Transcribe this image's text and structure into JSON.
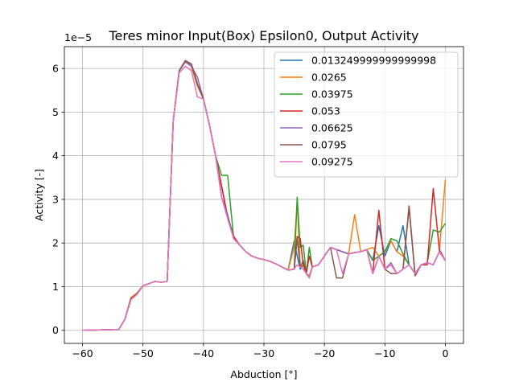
{
  "chart_data": {
    "type": "line",
    "title": "Teres minor Input(Box) Epsilon0, Output Activity",
    "xlabel": "Abduction [°]",
    "ylabel": "Activity [-]",
    "y_offset_label": "1e−5",
    "xlim": [
      -63,
      3
    ],
    "ylim": [
      -0.3,
      6.5
    ],
    "y_scale": 1e-05,
    "grid": true,
    "legend_position": "top-right",
    "x_ticks": [
      -60,
      -50,
      -40,
      -30,
      -20,
      -10,
      0
    ],
    "x_tick_labels": [
      "−60",
      "−50",
      "−40",
      "−30",
      "−20",
      "−10",
      "0"
    ],
    "y_ticks": [
      0,
      1,
      2,
      3,
      4,
      5,
      6
    ],
    "y_tick_labels": [
      "0",
      "1",
      "2",
      "3",
      "4",
      "5",
      "6"
    ],
    "series": [
      {
        "name": "0.013249999999999998",
        "color": "#1f77b4",
        "lw": 1.5,
        "x": [
          -60,
          -54,
          -53,
          -52,
          -51,
          -50,
          -49,
          -48,
          -47,
          -46,
          -45,
          -44,
          -43,
          -42,
          -41,
          -40,
          -39,
          -38,
          -37,
          -36,
          -35,
          -34,
          -33,
          -32,
          -31,
          -30,
          -29,
          -28,
          -27,
          -26,
          -25,
          -24.5,
          -24,
          -23.5,
          -23,
          -22.5,
          -22,
          -21,
          -20,
          -19,
          -18,
          -17,
          -16,
          -15,
          -14,
          -13,
          -12,
          -11,
          -10,
          -9,
          -8,
          -7,
          -6,
          -5,
          -4,
          -3,
          -2,
          -1,
          0
        ],
        "y": [
          0,
          0.02,
          0.25,
          0.75,
          0.85,
          1.02,
          1.07,
          1.12,
          1.1,
          1.12,
          4.8,
          5.95,
          6.15,
          6.05,
          5.6,
          5.3,
          4.7,
          4.0,
          3.3,
          2.6,
          2.15,
          1.95,
          1.8,
          1.7,
          1.65,
          1.62,
          1.58,
          1.52,
          1.45,
          1.38,
          2.05,
          1.7,
          1.4,
          1.5,
          1.3,
          1.25,
          1.45,
          1.5,
          1.7,
          1.9,
          1.85,
          1.8,
          1.75,
          1.78,
          1.8,
          1.85,
          1.6,
          2.4,
          1.7,
          2.05,
          1.8,
          2.4,
          1.5,
          1.3,
          1.5,
          1.55,
          1.5,
          1.8,
          1.6
        ]
      },
      {
        "name": "0.0265",
        "color": "#ff7f0e",
        "lw": 1.5,
        "x": [
          -60,
          -54,
          -53,
          -52,
          -51,
          -50,
          -49,
          -48,
          -47,
          -46,
          -45,
          -44,
          -43,
          -42,
          -41,
          -40,
          -39,
          -38,
          -37,
          -36,
          -35,
          -34,
          -33,
          -32,
          -31,
          -30,
          -29,
          -28,
          -27,
          -26,
          -25,
          -24.5,
          -24,
          -23.5,
          -23,
          -22.5,
          -22,
          -21,
          -20,
          -19,
          -18,
          -17,
          -16,
          -15,
          -14,
          -13,
          -12,
          -11,
          -10,
          -9,
          -8,
          -7,
          -6,
          -5,
          -4,
          -3,
          -2,
          -1,
          0
        ],
        "y": [
          0,
          0.02,
          0.25,
          0.75,
          0.85,
          1.02,
          1.07,
          1.12,
          1.1,
          1.12,
          4.8,
          5.95,
          6.15,
          6.05,
          5.6,
          5.3,
          4.7,
          4.0,
          3.3,
          2.6,
          2.15,
          1.95,
          1.8,
          1.7,
          1.65,
          1.62,
          1.58,
          1.52,
          1.45,
          1.38,
          1.9,
          2.95,
          1.45,
          1.5,
          1.3,
          1.25,
          1.45,
          1.5,
          1.7,
          1.9,
          1.85,
          1.8,
          1.75,
          2.65,
          1.8,
          1.85,
          1.9,
          1.7,
          1.8,
          2.05,
          1.8,
          1.7,
          1.5,
          1.3,
          1.5,
          1.55,
          1.5,
          1.8,
          3.45
        ]
      },
      {
        "name": "0.03975",
        "color": "#2ca02c",
        "lw": 1.5,
        "x": [
          -60,
          -54,
          -53,
          -52,
          -51,
          -50,
          -49,
          -48,
          -47,
          -46,
          -45,
          -44,
          -43,
          -42,
          -41,
          -40,
          -39,
          -38,
          -37,
          -36,
          -35,
          -34,
          -33,
          -32,
          -31,
          -30,
          -29,
          -28,
          -27,
          -26,
          -25,
          -24.5,
          -24,
          -23.5,
          -23,
          -22.5,
          -22,
          -21,
          -20,
          -19,
          -18,
          -17,
          -16,
          -15,
          -14,
          -13,
          -12,
          -11,
          -10,
          -9,
          -8,
          -7,
          -6,
          -5,
          -4,
          -3,
          -2,
          -1,
          0
        ],
        "y": [
          0,
          0.02,
          0.25,
          0.7,
          0.82,
          1.02,
          1.07,
          1.12,
          1.1,
          1.12,
          4.8,
          5.95,
          6.15,
          6.1,
          5.65,
          5.3,
          4.7,
          4.0,
          3.55,
          3.55,
          2.1,
          1.95,
          1.8,
          1.7,
          1.65,
          1.62,
          1.58,
          1.52,
          1.45,
          1.38,
          1.4,
          3.05,
          1.9,
          1.95,
          1.3,
          1.9,
          1.45,
          1.5,
          1.7,
          1.9,
          1.85,
          1.8,
          1.75,
          1.78,
          1.8,
          1.85,
          1.6,
          1.7,
          1.8,
          2.1,
          2.05,
          1.75,
          1.5,
          1.3,
          1.5,
          1.55,
          2.3,
          2.25,
          2.45
        ]
      },
      {
        "name": "0.053",
        "color": "#d62728",
        "lw": 1.5,
        "x": [
          -60,
          -54,
          -53,
          -52,
          -51,
          -50,
          -49,
          -48,
          -47,
          -46,
          -45,
          -44,
          -43,
          -42,
          -41,
          -40,
          -39,
          -38,
          -37,
          -36,
          -35,
          -34,
          -33,
          -32,
          -31,
          -30,
          -29,
          -28,
          -27,
          -26,
          -25,
          -24.5,
          -24,
          -23.5,
          -23,
          -22.5,
          -22,
          -21,
          -20,
          -19,
          -18,
          -17,
          -16,
          -15,
          -14,
          -13,
          -12,
          -11,
          -10,
          -9,
          -8,
          -7,
          -6,
          -5,
          -4,
          -3,
          -2,
          -1,
          0
        ],
        "y": [
          0,
          0.02,
          0.25,
          0.72,
          0.84,
          1.02,
          1.07,
          1.12,
          1.1,
          1.12,
          4.8,
          5.95,
          6.18,
          6.1,
          5.65,
          5.3,
          4.7,
          4.0,
          3.3,
          2.6,
          2.15,
          1.95,
          1.8,
          1.7,
          1.65,
          1.62,
          1.58,
          1.52,
          1.45,
          1.38,
          1.4,
          2.15,
          2.1,
          1.5,
          1.3,
          1.7,
          1.45,
          1.5,
          1.7,
          1.9,
          1.85,
          1.8,
          1.75,
          1.78,
          1.8,
          1.85,
          1.3,
          2.75,
          1.4,
          1.5,
          1.3,
          1.4,
          2.85,
          1.25,
          1.5,
          1.5,
          3.25,
          1.85,
          1.6
        ]
      },
      {
        "name": "0.06625",
        "color": "#9467bd",
        "lw": 1.5,
        "x": [
          -60,
          -54,
          -53,
          -52,
          -51,
          -50,
          -49,
          -48,
          -47,
          -46,
          -45,
          -44,
          -43,
          -42,
          -41,
          -40,
          -39,
          -38,
          -37,
          -36,
          -35,
          -34,
          -33,
          -32,
          -31,
          -30,
          -29,
          -28,
          -27,
          -26,
          -25,
          -24.5,
          -24,
          -23.5,
          -23,
          -22.5,
          -22,
          -21,
          -20,
          -19,
          -18,
          -17,
          -16,
          -15,
          -14,
          -13,
          -12,
          -11,
          -10,
          -9,
          -8,
          -7,
          -6,
          -5,
          -4,
          -3,
          -2,
          -1,
          0
        ],
        "y": [
          0,
          0.02,
          0.25,
          0.7,
          0.82,
          1.02,
          1.07,
          1.12,
          1.1,
          1.12,
          4.8,
          5.95,
          6.15,
          6.05,
          5.8,
          5.3,
          4.7,
          4.0,
          3.05,
          2.65,
          2.1,
          1.95,
          1.8,
          1.7,
          1.65,
          1.62,
          1.58,
          1.52,
          1.45,
          1.38,
          1.4,
          2.1,
          1.45,
          1.4,
          1.3,
          1.2,
          1.45,
          1.5,
          1.7,
          1.9,
          1.85,
          1.8,
          1.75,
          1.78,
          1.8,
          1.85,
          1.3,
          1.7,
          1.4,
          1.55,
          1.3,
          1.4,
          1.5,
          1.3,
          1.5,
          1.55,
          1.5,
          1.8,
          1.6
        ]
      },
      {
        "name": "0.0795",
        "color": "#8c564b",
        "lw": 1.5,
        "x": [
          -60,
          -54,
          -53,
          -52,
          -51,
          -50,
          -49,
          -48,
          -47,
          -46,
          -45,
          -44,
          -43,
          -42,
          -41,
          -40,
          -39,
          -38,
          -37,
          -36,
          -35,
          -34,
          -33,
          -32,
          -31,
          -30,
          -29,
          -28,
          -27,
          -26,
          -25,
          -24.5,
          -24,
          -23.5,
          -23,
          -22.5,
          -22,
          -21,
          -20,
          -19,
          -18,
          -17,
          -16,
          -15,
          -14,
          -13,
          -12,
          -11,
          -10,
          -9,
          -8,
          -7,
          -6,
          -5,
          -4,
          -3,
          -2,
          -1,
          0
        ],
        "y": [
          0,
          0.02,
          0.25,
          0.72,
          0.84,
          1.02,
          1.07,
          1.12,
          1.1,
          1.12,
          4.8,
          5.95,
          6.18,
          6.1,
          5.65,
          5.3,
          4.7,
          4.0,
          3.05,
          2.6,
          2.1,
          1.95,
          1.8,
          1.7,
          1.65,
          1.62,
          1.58,
          1.52,
          1.45,
          1.38,
          1.4,
          2.15,
          1.45,
          1.6,
          1.3,
          1.2,
          1.45,
          1.5,
          1.7,
          1.9,
          1.2,
          1.2,
          1.75,
          1.78,
          1.8,
          1.85,
          1.3,
          1.7,
          1.4,
          1.3,
          1.3,
          1.4,
          2.8,
          1.25,
          1.5,
          1.55,
          1.5,
          1.8,
          1.6
        ]
      },
      {
        "name": "0.09275",
        "color": "#e377c2",
        "lw": 1.5,
        "x": [
          -60,
          -54,
          -53,
          -52,
          -51,
          -50,
          -49,
          -48,
          -47,
          -46,
          -45,
          -44,
          -43,
          -42,
          -41,
          -40,
          -39,
          -38,
          -37,
          -36,
          -35,
          -34,
          -33,
          -32,
          -31,
          -30,
          -29,
          -28,
          -27,
          -26,
          -25,
          -24.5,
          -24,
          -23.5,
          -23,
          -22.5,
          -22,
          -21,
          -20,
          -19,
          -18,
          -17,
          -16,
          -15,
          -14,
          -13,
          -12,
          -11,
          -10,
          -9,
          -8,
          -7,
          -6,
          -5,
          -4,
          -3,
          -2,
          -1,
          0
        ],
        "y": [
          0,
          0.02,
          0.25,
          0.7,
          0.82,
          1.02,
          1.07,
          1.12,
          1.1,
          1.12,
          4.8,
          5.9,
          6.05,
          5.95,
          5.35,
          5.3,
          4.7,
          4.0,
          3.05,
          2.55,
          2.1,
          1.95,
          1.8,
          1.7,
          1.65,
          1.62,
          1.58,
          1.52,
          1.45,
          1.38,
          1.4,
          1.5,
          1.45,
          1.4,
          1.3,
          1.2,
          1.45,
          1.5,
          1.7,
          1.9,
          1.85,
          1.3,
          1.75,
          1.78,
          1.8,
          1.85,
          1.3,
          1.7,
          1.4,
          1.5,
          1.3,
          1.4,
          1.5,
          1.3,
          1.5,
          1.55,
          1.5,
          1.8,
          1.6
        ]
      }
    ]
  }
}
